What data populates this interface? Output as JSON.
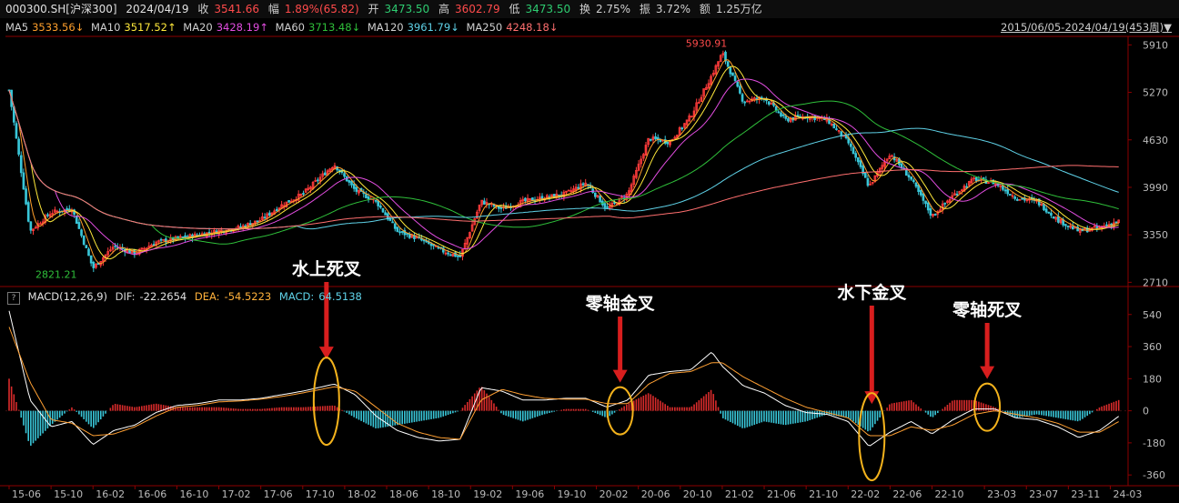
{
  "header": {
    "symbol": "000300.SH[沪深300]",
    "date": "2024/04/19",
    "close_label": "收",
    "close": "3541.66",
    "change_label": "幅",
    "change": "1.89%(65.82)",
    "open_label": "开",
    "open": "3473.50",
    "high_label": "高",
    "high": "3602.79",
    "low_label": "低",
    "low": "3473.50",
    "turnover_label": "换",
    "turnover": "2.75%",
    "amplitude_label": "振",
    "amplitude": "3.72%",
    "amount_label": "额",
    "amount": "1.25万亿"
  },
  "ma_legend": [
    {
      "name": "MA5",
      "value": "3533.56↓",
      "color": "#ff9f2b"
    },
    {
      "name": "MA10",
      "value": "3517.52↑",
      "color": "#ffe93b"
    },
    {
      "name": "MA20",
      "value": "3428.19↑",
      "color": "#e24de0"
    },
    {
      "name": "MA60",
      "value": "3713.48↓",
      "color": "#2fbf3a"
    },
    {
      "name": "MA120",
      "value": "3961.79↓",
      "color": "#5fd2e8"
    },
    {
      "name": "MA250",
      "value": "4248.18↓",
      "color": "#ff6f6f"
    }
  ],
  "range_label": "2015/06/05-2024/04/19(453周)▼",
  "macd_legend": {
    "help": "?",
    "name": "MACD(12,26,9)",
    "dif_label": "DIF:",
    "dif": "-22.2654",
    "dea_label": "DEA:",
    "dea": "-54.5223",
    "macd_label": "MACD:",
    "macd": "64.5138"
  },
  "annotations": [
    {
      "text": "水上死叉",
      "x_date": "17-12",
      "macd_y": 130
    },
    {
      "text": "零轴金叉",
      "x_date": "20-04",
      "macd_y": 0
    },
    {
      "text": "水下金叉",
      "x_date": "22-04",
      "macd_y": -120
    },
    {
      "text": "零轴死叉",
      "x_date": "23-03",
      "macd_y": 20
    }
  ],
  "chart_data": [
    {
      "type": "candlestick",
      "title": "",
      "y_ticks": [
        5910,
        5270,
        4630,
        3990,
        3350,
        2710
      ],
      "ylim": [
        2690,
        6000
      ],
      "max_label": "5930.91",
      "min_label": "2821.21",
      "close_series_weekly_approx": {
        "x": [
          "15-06",
          "15-08",
          "15-10",
          "15-12",
          "16-02",
          "16-04",
          "16-06",
          "16-08",
          "16-10",
          "16-12",
          "17-02",
          "17-04",
          "17-06",
          "17-08",
          "17-10",
          "18-01",
          "18-03",
          "18-05",
          "18-07",
          "18-09",
          "18-11",
          "19-01",
          "19-03",
          "19-05",
          "19-07",
          "19-09",
          "19-11",
          "20-01",
          "20-03",
          "20-05",
          "20-07",
          "20-09",
          "20-11",
          "21-01",
          "21-02",
          "21-04",
          "21-06",
          "21-08",
          "21-10",
          "21-12",
          "22-02",
          "22-04",
          "22-06",
          "22-08",
          "22-10",
          "22-12",
          "23-02",
          "23-04",
          "23-06",
          "23-08",
          "23-10",
          "23-12",
          "24-02",
          "24-04"
        ],
        "values": [
          5300,
          3400,
          3650,
          3700,
          2900,
          3200,
          3100,
          3250,
          3300,
          3350,
          3400,
          3450,
          3550,
          3750,
          3900,
          4300,
          3950,
          3800,
          3400,
          3300,
          3150,
          3050,
          3800,
          3700,
          3800,
          3850,
          3900,
          4050,
          3700,
          3900,
          4650,
          4600,
          4950,
          5500,
          5800,
          5150,
          5200,
          4900,
          4950,
          4900,
          4600,
          4000,
          4450,
          4100,
          3600,
          3880,
          4100,
          4050,
          3850,
          3800,
          3550,
          3400,
          3450,
          3541.66
        ]
      },
      "moving_averages": [
        "MA5",
        "MA10",
        "MA20",
        "MA60",
        "MA120",
        "MA250"
      ]
    },
    {
      "type": "line+bar",
      "title": "",
      "y_ticks": [
        540,
        360,
        180,
        0,
        -180,
        -360
      ],
      "ylim": [
        -400,
        600
      ],
      "series": [
        {
          "name": "DIF",
          "x": [
            "15-06",
            "15-08",
            "15-10",
            "15-12",
            "16-02",
            "16-04",
            "16-06",
            "16-08",
            "16-10",
            "16-12",
            "17-02",
            "17-04",
            "17-06",
            "17-08",
            "17-10",
            "18-01",
            "18-03",
            "18-05",
            "18-07",
            "18-09",
            "18-11",
            "19-01",
            "19-03",
            "19-05",
            "19-07",
            "19-09",
            "19-11",
            "20-01",
            "20-03",
            "20-05",
            "20-07",
            "20-09",
            "20-11",
            "21-01",
            "21-02",
            "21-04",
            "21-06",
            "21-08",
            "21-10",
            "21-12",
            "22-02",
            "22-04",
            "22-06",
            "22-08",
            "22-10",
            "22-12",
            "23-02",
            "23-04",
            "23-06",
            "23-08",
            "23-10",
            "23-12",
            "24-02",
            "24-04"
          ],
          "values": [
            560,
            60,
            -90,
            -60,
            -190,
            -110,
            -80,
            -10,
            30,
            40,
            60,
            60,
            70,
            90,
            110,
            150,
            90,
            -30,
            -110,
            -150,
            -170,
            -160,
            130,
            110,
            60,
            60,
            70,
            70,
            20,
            60,
            200,
            220,
            230,
            330,
            250,
            140,
            100,
            30,
            -10,
            -20,
            -60,
            -200,
            -120,
            -60,
            -130,
            -50,
            10,
            10,
            -40,
            -50,
            -90,
            -150,
            -110,
            -22.27
          ]
        },
        {
          "name": "DEA",
          "x": [
            "15-06",
            "15-08",
            "15-10",
            "15-12",
            "16-02",
            "16-04",
            "16-06",
            "16-08",
            "16-10",
            "16-12",
            "17-02",
            "17-04",
            "17-06",
            "17-08",
            "17-10",
            "18-01",
            "18-03",
            "18-05",
            "18-07",
            "18-09",
            "18-11",
            "19-01",
            "19-03",
            "19-05",
            "19-07",
            "19-09",
            "19-11",
            "20-01",
            "20-03",
            "20-05",
            "20-07",
            "20-09",
            "20-11",
            "21-01",
            "21-02",
            "21-04",
            "21-06",
            "21-08",
            "21-10",
            "21-12",
            "22-02",
            "22-04",
            "22-06",
            "22-08",
            "22-10",
            "22-12",
            "23-02",
            "23-04",
            "23-06",
            "23-08",
            "23-10",
            "23-12",
            "24-02",
            "24-04"
          ],
          "values": [
            470,
            160,
            -50,
            -70,
            -140,
            -130,
            -90,
            -30,
            20,
            30,
            50,
            55,
            65,
            80,
            100,
            135,
            110,
            20,
            -70,
            -120,
            -150,
            -160,
            60,
            120,
            90,
            70,
            65,
            65,
            40,
            40,
            150,
            210,
            220,
            270,
            270,
            190,
            130,
            70,
            20,
            -10,
            -40,
            -140,
            -140,
            -90,
            -110,
            -80,
            -20,
            0,
            -20,
            -40,
            -70,
            -120,
            -120,
            -54.52
          ]
        },
        {
          "name": "MACD",
          "x": [
            "15-06",
            "15-08",
            "15-10",
            "15-12",
            "16-02",
            "16-04",
            "16-06",
            "16-08",
            "16-10",
            "16-12",
            "17-02",
            "17-04",
            "17-06",
            "17-08",
            "17-10",
            "18-01",
            "18-03",
            "18-05",
            "18-07",
            "18-09",
            "18-11",
            "19-01",
            "19-03",
            "19-05",
            "19-07",
            "19-09",
            "19-11",
            "20-01",
            "20-03",
            "20-05",
            "20-07",
            "20-09",
            "20-11",
            "21-01",
            "21-02",
            "21-04",
            "21-06",
            "21-08",
            "21-10",
            "21-12",
            "22-02",
            "22-04",
            "22-06",
            "22-08",
            "22-10",
            "22-12",
            "23-02",
            "23-04",
            "23-06",
            "23-08",
            "23-10",
            "23-12",
            "24-02",
            "24-04"
          ],
          "values": [
            180,
            -200,
            -80,
            20,
            -100,
            40,
            20,
            40,
            20,
            20,
            20,
            10,
            10,
            20,
            20,
            30,
            -40,
            -100,
            -80,
            -60,
            -40,
            0,
            140,
            -20,
            -60,
            -20,
            10,
            10,
            -40,
            40,
            100,
            20,
            20,
            120,
            -40,
            -100,
            -60,
            -80,
            -60,
            -20,
            -40,
            -120,
            40,
            60,
            -40,
            60,
            60,
            20,
            -40,
            -20,
            -40,
            -60,
            20,
            64.51
          ]
        }
      ]
    }
  ],
  "x_axis": [
    "15-06",
    "15-10",
    "16-02",
    "16-06",
    "16-10",
    "17-02",
    "17-06",
    "17-10",
    "18-02",
    "18-06",
    "18-10",
    "19-02",
    "19-06",
    "19-10",
    "20-02",
    "20-06",
    "20-10",
    "21-02",
    "21-06",
    "21-10",
    "22-02",
    "22-06",
    "22-10",
    "23-03",
    "23-07",
    "23-11",
    "24-03"
  ]
}
